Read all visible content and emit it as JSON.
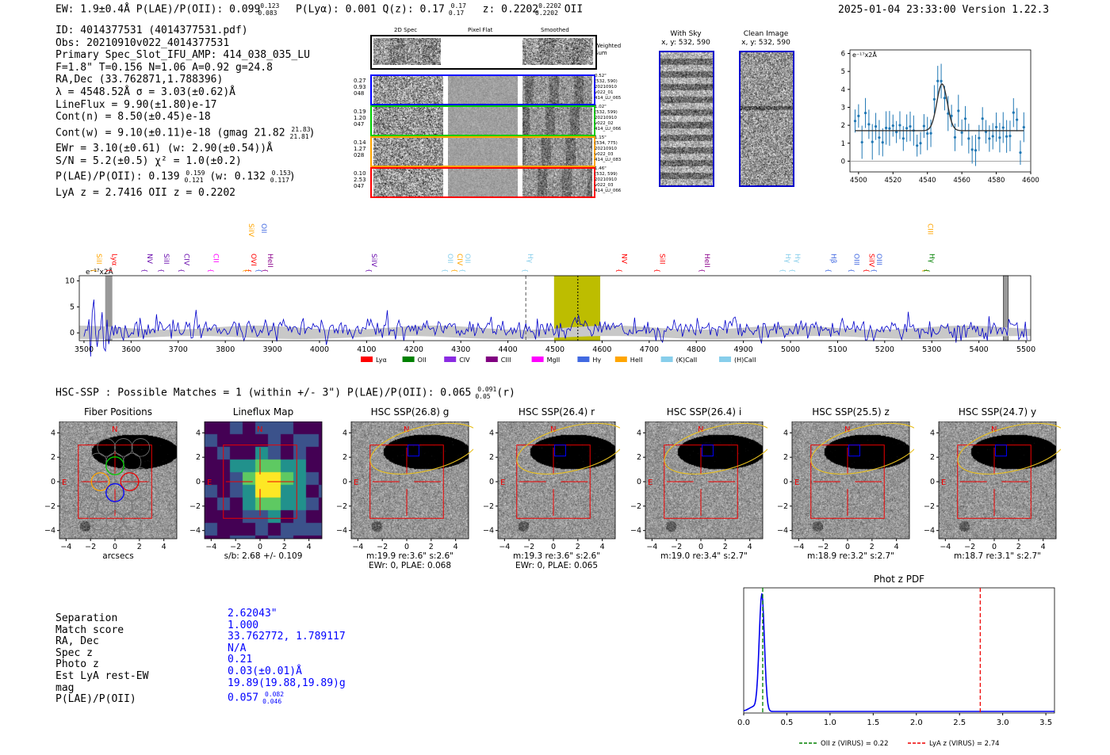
{
  "header": {
    "left": "EW: 1.9±0.4Å  P(LAE)/P(OII): 0.099",
    "plae_sup": "0.123",
    "plae_sub": "0.083",
    "mid": "P(Lyα): 0.001  Q(z): 0.17",
    "qz_sup": "0.17",
    "qz_sub": "0.17",
    "z": "z: 0.2202",
    "z_sup": "0.2202",
    "z_sub": "0.2202",
    "line": "OII",
    "right": "2025-01-04 23:33:00  Version 1.22.3"
  },
  "info": {
    "l1": "ID: 4014377531 (4014377531.pdf)",
    "l2": "Obs: 20210910v022_4014377531",
    "l3": "Primary Spec_Slot_IFU_AMP: 414_038_035_LU",
    "l4": "F=1.8\"  T=0.156  N=1.06  A=0.92  g=24.8",
    "l5": "RA,Dec (33.762871,1.788396)",
    "l6": "λ = 4548.52Å  σ = 3.03(±0.62)Å",
    "l7": "LineFlux = 9.90(±1.80)e-17",
    "l8": "Cont(n) = 8.50(±0.45)e-18",
    "l9": "Cont(w) = 9.10(±0.11)e-18 (gmag 21.82",
    "l9_sup": "21.83",
    "l9_sub": "21.81",
    "l10": "EWr = 3.10(±0.61) (w: 2.90(±0.54))Å",
    "l11": "S/N = 5.2(±0.5)  χ² = 1.0(±0.2)",
    "l12": "P(LAE)/P(OII): 0.139",
    "l12_sup": "0.159",
    "l12_sub": "0.121",
    "l12b": "(w: 0.132",
    "l12b_sup": "0.153",
    "l12b_sub": "0.117",
    "l13": "LyA z = 2.7416  OII z = 0.2202"
  },
  "cutouts": {
    "col_2d": "2D Spec",
    "col_flat": "Pixel Flat",
    "col_smooth": "Smoothed",
    "weighted": "Weighted Sum",
    "rows": [
      {
        "l1": "0.27",
        "l2": "0.93",
        "l3": "048",
        "r1": "0.52\"",
        "r2": "(532, 590)",
        "r3": "20210910",
        "r4": "v022_01",
        "r5": "414_LU_065",
        "color": "#0000ff"
      },
      {
        "l1": "0.19",
        "l2": "1.20",
        "l3": "047",
        "r1": "1.02\"",
        "r2": "(532, 599)",
        "r3": "20210910",
        "r4": "v022_02",
        "r5": "414_LU_066",
        "color": "#00cc00"
      },
      {
        "l1": "0.14",
        "l2": "1.27",
        "l3": "028",
        "r1": "1.15\"",
        "r2": "(534, 775)",
        "r3": "20210910",
        "r4": "v022_03",
        "r5": "414_LU_083",
        "color": "#ffa500"
      },
      {
        "l1": "0.10",
        "l2": "2.53",
        "l3": "047",
        "r1": "1.46\"",
        "r2": "(532, 599)",
        "r3": "20210910",
        "r4": "v022_03",
        "r5": "414_LU_066",
        "color": "#ff0000"
      }
    ]
  },
  "sky": {
    "with_sky": "With Sky",
    "with_sky_xy": "x, y: 532, 590",
    "clean": "Clean Image",
    "clean_xy": "x, y: 532, 590"
  },
  "zoom_chart": {
    "type": "line",
    "ylabel": "e⁻¹⁷x2Å",
    "xlim": [
      4495,
      4600
    ],
    "ylim": [
      -0.6,
      6.2
    ],
    "xticks": [
      "4500",
      "4520",
      "4540",
      "4560",
      "4580",
      "4600"
    ],
    "yticks": [
      "0",
      "1",
      "2",
      "3",
      "4",
      "5",
      "6"
    ]
  },
  "spectrum": {
    "type": "line",
    "ylabel": "e⁻¹⁷x2Å",
    "xlim": [
      3490,
      5510
    ],
    "ylim": [
      -1.5,
      11
    ],
    "xticks": [
      "3500",
      "3600",
      "3700",
      "3800",
      "3900",
      "4000",
      "4100",
      "4200",
      "4300",
      "4400",
      "4500",
      "4600",
      "4700",
      "4800",
      "4900",
      "5000",
      "5100",
      "5200",
      "5300",
      "5400",
      "5500"
    ],
    "yticks": [
      "0",
      "5",
      "10"
    ],
    "lines": [
      {
        "label": "SiII",
        "x": 3522,
        "color": "#ffa500",
        "row": 2
      },
      {
        "label": "Lyα",
        "x": 3555,
        "color": "#ff0000",
        "row": 2
      },
      {
        "label": "NV",
        "x": 3630,
        "color": "#6a0dad",
        "row": 2
      },
      {
        "label": "SiII",
        "x": 3665,
        "color": "#6a0dad",
        "row": 2
      },
      {
        "label": "CIV",
        "x": 3708,
        "color": "#6a0dad",
        "row": 2
      },
      {
        "label": "CII",
        "x": 3770,
        "color": "#ff00ff",
        "row": 2
      },
      {
        "label": "OVI",
        "x": 3850,
        "color": "#ff0000",
        "row": 2
      },
      {
        "label": "SiIV",
        "x": 3845,
        "color": "#ffa500",
        "row": 1
      },
      {
        "label": "OII",
        "x": 3872,
        "color": "#4169e1",
        "row": 1
      },
      {
        "label": "HeII",
        "x": 3886,
        "color": "#8b008b",
        "row": 2
      },
      {
        "label": "SiIV",
        "x": 4106,
        "color": "#6a0dad",
        "row": 2
      },
      {
        "label": "OII",
        "x": 4268,
        "color": "#87ceeb",
        "row": 2
      },
      {
        "label": "CIV",
        "x": 4288,
        "color": "#ffa500",
        "row": 2
      },
      {
        "label": "OII",
        "x": 4305,
        "color": "#87ceeb",
        "row": 2
      },
      {
        "label": "Hγ",
        "x": 4438,
        "color": "#87ceeb",
        "row": 2
      },
      {
        "label": "NV",
        "x": 4637,
        "color": "#ff0000",
        "row": 2
      },
      {
        "label": "SiII",
        "x": 4718,
        "color": "#ff0000",
        "row": 2
      },
      {
        "label": "HeII",
        "x": 4813,
        "color": "#8b008b",
        "row": 2
      },
      {
        "label": "Hγ",
        "x": 4985,
        "color": "#87ceeb",
        "row": 2
      },
      {
        "label": "Hγ",
        "x": 5005,
        "color": "#87ceeb",
        "row": 2
      },
      {
        "label": "Hβ",
        "x": 5082,
        "color": "#4169e1",
        "row": 2
      },
      {
        "label": "OIII",
        "x": 5130,
        "color": "#4169e1",
        "row": 2
      },
      {
        "label": "SiIV",
        "x": 5162,
        "color": "#ff0000",
        "row": 2
      },
      {
        "label": "OIII",
        "x": 5178,
        "color": "#4169e1",
        "row": 2
      },
      {
        "label": "CIII",
        "x": 5287,
        "color": "#ffa500",
        "row": 1
      },
      {
        "label": "Hγ",
        "x": 5290,
        "color": "#008000",
        "row": 2
      }
    ],
    "legend": [
      {
        "label": "Lyα",
        "color": "#ff0000"
      },
      {
        "label": "OII",
        "color": "#008000"
      },
      {
        "label": "CIV",
        "color": "#8a2be2"
      },
      {
        "label": "CIII",
        "color": "#800080"
      },
      {
        "label": "MgII",
        "color": "#ff00ff"
      },
      {
        "label": "Hγ",
        "color": "#4169e1"
      },
      {
        "label": "HeII",
        "color": "#ffa500"
      },
      {
        "label": "(K)CaII",
        "color": "#87ceeb"
      },
      {
        "label": "(H)CaII",
        "color": "#87ceeb"
      }
    ]
  },
  "hsc": {
    "summary": "HSC-SSP : Possible Matches = 1 (within +/- 3\")  P(LAE)/P(OII): 0.065",
    "summary_sup": "0.091",
    "summary_sub": "0.05",
    "summary_band": "(r)"
  },
  "panels": [
    {
      "title": "Fiber Positions",
      "cap1": "arcsecs",
      "cap2": ""
    },
    {
      "title": "Lineflux Map",
      "cap1": "s/b: 2.68 +/- 0.109",
      "cap2": ""
    },
    {
      "title": "HSC SSP(26.8) g",
      "cap1": "m:19.9  re:3.6\"  s:2.6\"",
      "cap2": "EWr: 0, PLAE: 0.068"
    },
    {
      "title": "HSC SSP(26.4) r",
      "cap1": "m:19.3  re:3.6\"  s:2.6\"",
      "cap2": "EWr: 0, PLAE: 0.065"
    },
    {
      "title": "HSC SSP(26.4) i",
      "cap1": "m:19.0  re:3.4\"  s:2.7\"",
      "cap2": ""
    },
    {
      "title": "HSC SSP(25.5) z",
      "cap1": "m:18.9  re:3.2\"  s:2.7\"",
      "cap2": ""
    },
    {
      "title": "HSC SSP(24.7) y",
      "cap1": "m:18.7  re:3.1\"  s:2.7\"",
      "cap2": ""
    }
  ],
  "panel_axis": {
    "ticks": [
      "−4",
      "−2",
      "0",
      "2",
      "4"
    ],
    "north": "N",
    "east": "E"
  },
  "match": {
    "labels": [
      "Separation",
      "Match score",
      "RA, Dec",
      "Spec z",
      "Photo z",
      "Est LyA rest-EW",
      "mag",
      "P(LAE)/P(OII)"
    ],
    "values": [
      "2.62043\"",
      "1.000",
      "33.762772, 1.789117",
      "N/A",
      "0.21",
      "0.03(±0.01)Å",
      "19.89(19.88,19.89)g",
      "0.057"
    ],
    "plae_sup": "0.082",
    "plae_sub": "0.046"
  },
  "photz": {
    "type": "line",
    "title": "Phot z PDF",
    "xlim": [
      0.0,
      3.6
    ],
    "xticks": [
      "0.0",
      "0.5",
      "1.0",
      "1.5",
      "2.0",
      "2.5",
      "3.0",
      "3.5"
    ],
    "oii_z": 0.22,
    "lya_z": 2.74,
    "legend_oii": "OII z (VIRUS) = 0.22",
    "legend_lya": "LyA z (VIRUS) = 2.74",
    "peak_z": 0.21
  }
}
